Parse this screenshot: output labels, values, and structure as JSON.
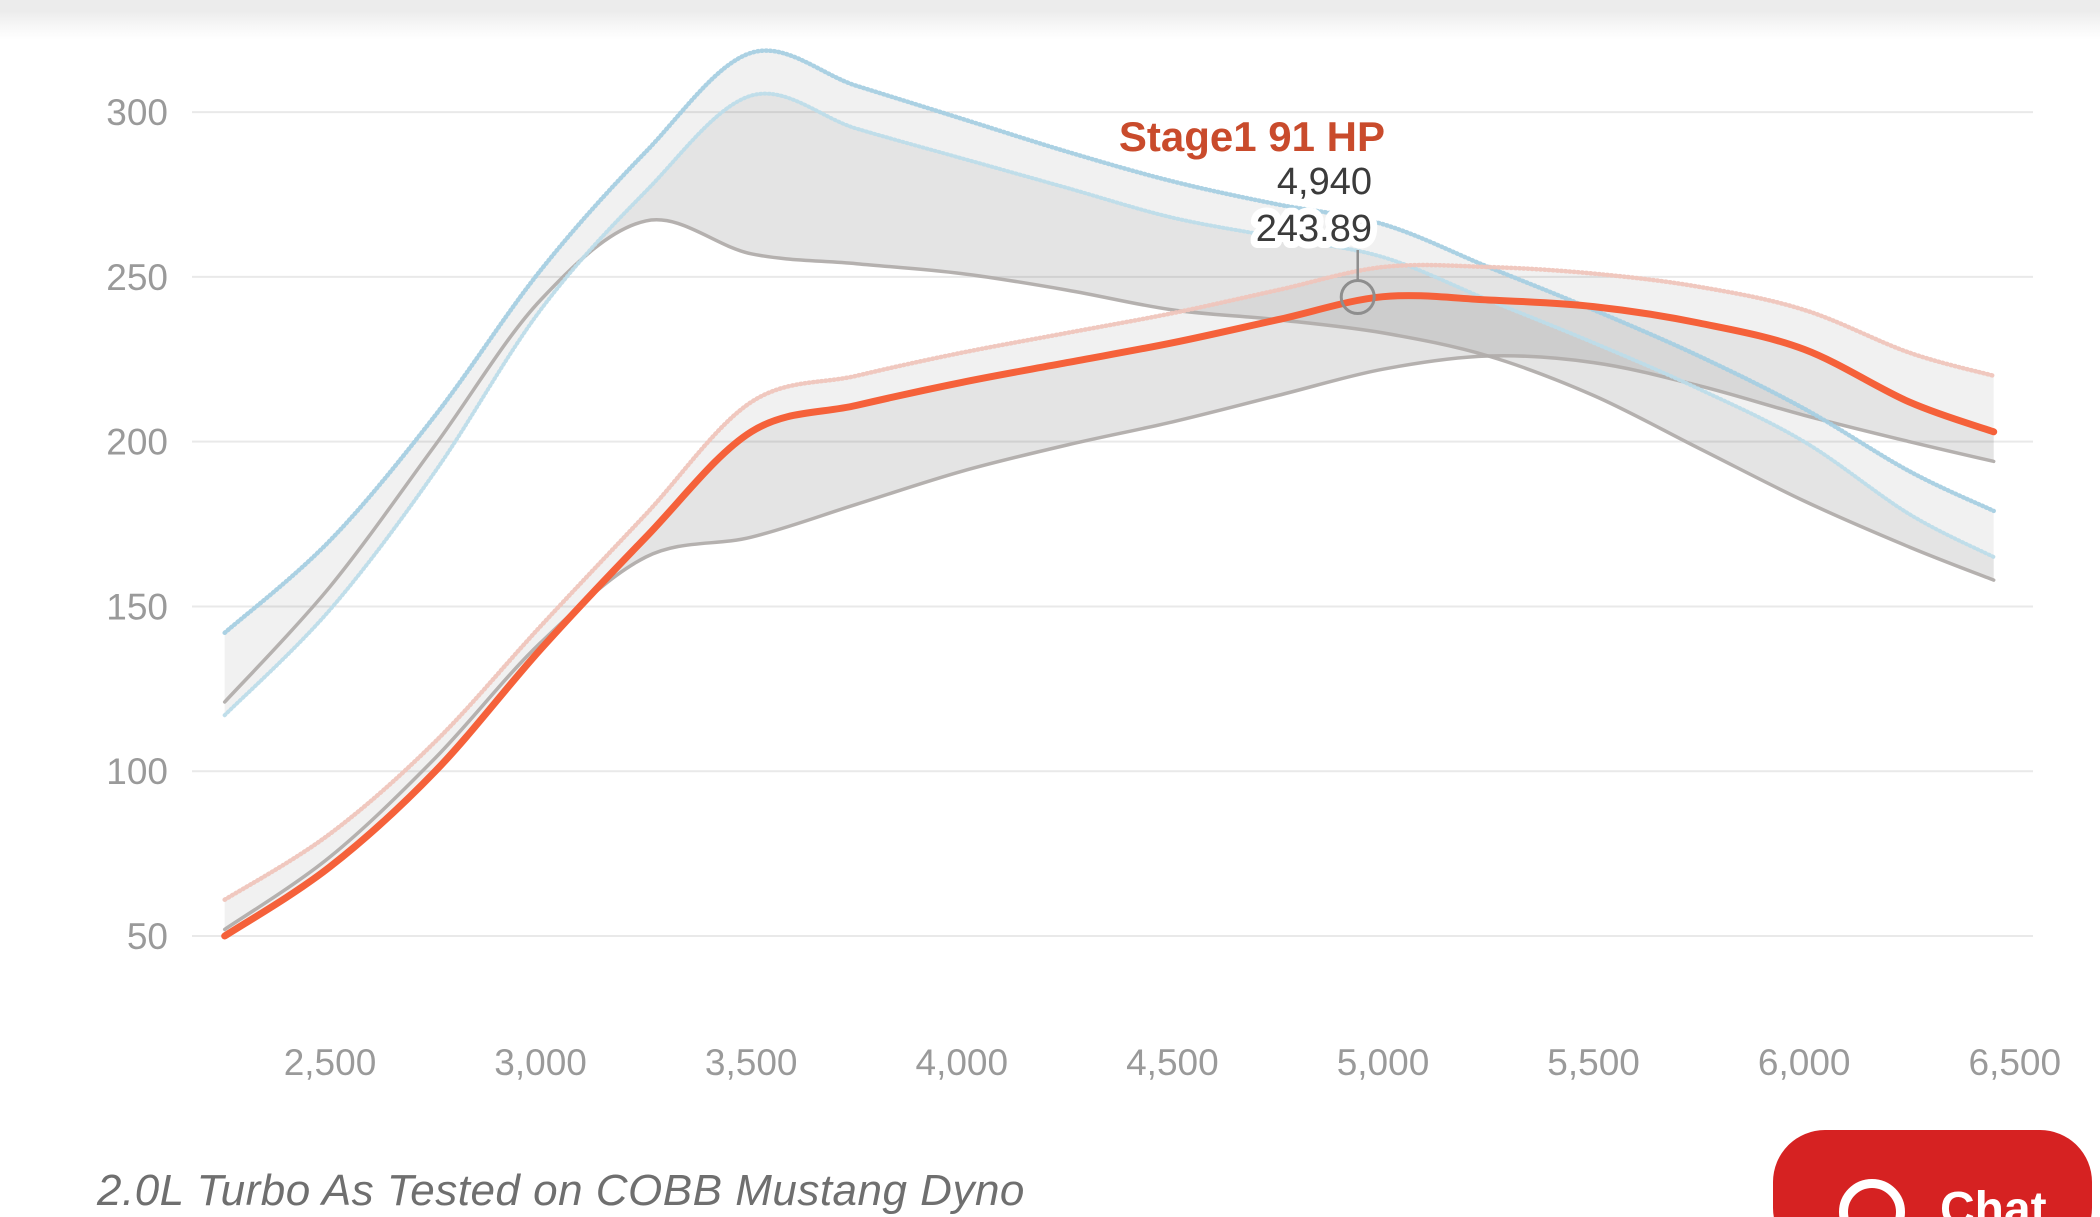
{
  "chart_data": {
    "type": "line",
    "highlight_label": "Stage1 91 HP",
    "tooltip": {
      "rpm_label": "4,940",
      "value_label": "243.89",
      "rpm": 4940,
      "value": 243.89
    },
    "x_ticks": [
      "2,500",
      "3,000",
      "3,500",
      "4,000",
      "4,500",
      "5,000",
      "5,500",
      "6,000",
      "6,500"
    ],
    "x_tick_values": [
      2500,
      3000,
      3500,
      4000,
      4500,
      5000,
      5500,
      6000,
      6500
    ],
    "y_ticks": [
      "300",
      "250",
      "200",
      "150",
      "100",
      "50"
    ],
    "y_tick_values": [
      300,
      250,
      200,
      150,
      100,
      50
    ],
    "xlim": [
      2250,
      6500
    ],
    "ylim": [
      50,
      300
    ],
    "grid": "horizontal-only",
    "legend_position": "inline-above-highlighted-line",
    "rpm": [
      2250,
      2500,
      2750,
      3000,
      3250,
      3500,
      3750,
      4000,
      4250,
      4500,
      4750,
      5000,
      5250,
      5500,
      5750,
      6000,
      6250,
      6450
    ],
    "series": [
      {
        "name": "torque-upper-blue",
        "color": "#a6cfe2",
        "width": 4.5,
        "dotted": true,
        "values": [
          142,
          170,
          208,
          252,
          288,
          318,
          308,
          298,
          288,
          279,
          272,
          266,
          253,
          240,
          226,
          210,
          191,
          179
        ]
      },
      {
        "name": "torque-lower-blue",
        "color": "#bddce9",
        "width": 4,
        "dotted": true,
        "values": [
          117,
          149,
          191,
          240,
          276,
          305,
          295,
          286,
          277,
          268,
          262,
          256,
          243,
          230,
          216,
          200,
          178,
          165
        ]
      },
      {
        "name": "torque-stock-gray",
        "color": "#b1adab",
        "width": 3.5,
        "dotted": false,
        "values": [
          121,
          156,
          199,
          243,
          267,
          257,
          254,
          251,
          246,
          240,
          237,
          233,
          226,
          214,
          198,
          182,
          168,
          158
        ]
      },
      {
        "name": "hp-upper-pink",
        "color": "#efc5bc",
        "width": 4.5,
        "dotted": true,
        "values": [
          61,
          81,
          109,
          144,
          178,
          212,
          220,
          227,
          233,
          239,
          246,
          253,
          253,
          251,
          247,
          240,
          227,
          220
        ]
      },
      {
        "name": "hp-stock-gray",
        "color": "#b1adab",
        "width": 3.5,
        "dotted": false,
        "values": [
          52,
          74,
          104,
          139,
          165,
          171,
          181,
          191,
          199,
          206,
          214,
          222,
          226,
          224,
          217,
          208,
          200,
          194
        ]
      },
      {
        "name": "hp-stage1-91-orange",
        "color": "#f5613a",
        "width": 7,
        "dotted": false,
        "highlighted": true,
        "values": [
          50,
          71,
          100,
          137,
          171,
          203,
          211,
          218,
          224,
          230,
          237,
          244,
          243,
          241,
          236,
          228,
          212,
          203
        ]
      }
    ],
    "bands": [
      [
        0,
        2
      ],
      [
        1,
        2
      ],
      [
        3,
        4
      ],
      [
        5,
        4
      ]
    ],
    "band_fill": "rgba(95,95,95,0.085)",
    "colors": {
      "gridline": "#e9e9e9",
      "axis_text": "#9a9a9a",
      "marker_stroke": "#8e8e8e",
      "highlight_line": "#f5613a",
      "highlight_label": "#c94b2c"
    }
  },
  "caption": "2.0L Turbo As Tested on COBB Mustang Dyno",
  "chat": {
    "label": "Chat",
    "background": "#d62222"
  }
}
